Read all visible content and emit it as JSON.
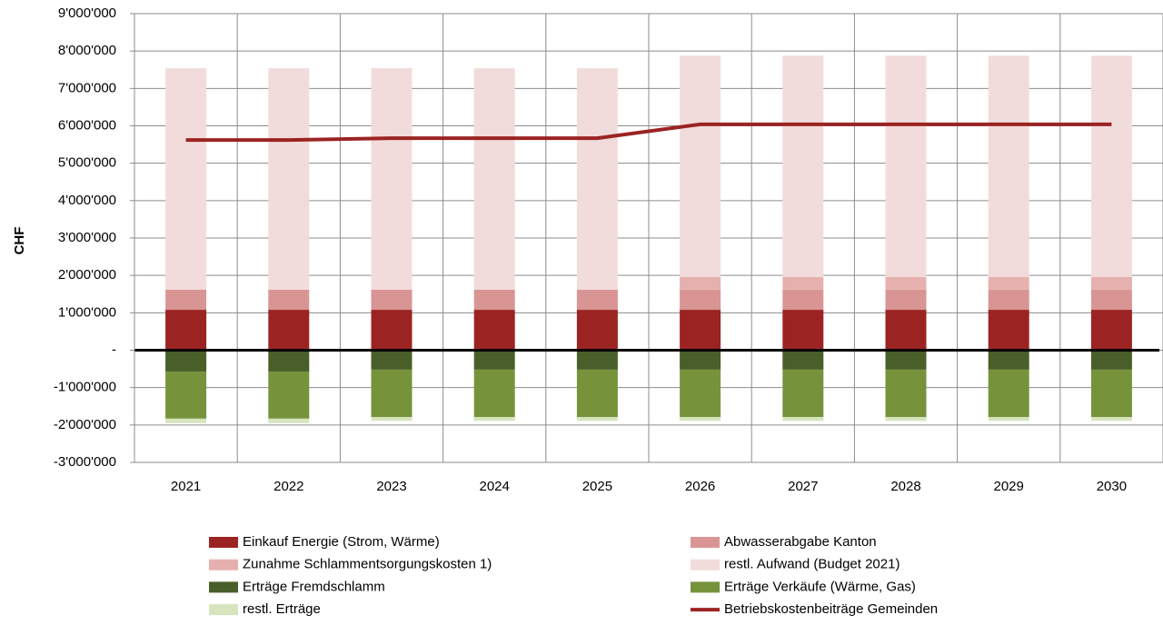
{
  "chart_data": {
    "type": "bar",
    "stacked": true,
    "ylabel": "CHF",
    "categories": [
      "2021",
      "2022",
      "2023",
      "2024",
      "2025",
      "2026",
      "2027",
      "2028",
      "2029",
      "2030"
    ],
    "series": [
      {
        "name": "Einkauf Energie (Strom, Wärme)",
        "color": "#9b2423",
        "values": [
          1080000,
          1080000,
          1080000,
          1080000,
          1080000,
          1080000,
          1080000,
          1080000,
          1080000,
          1080000
        ]
      },
      {
        "name": "Abwasserabgabe Kanton",
        "color": "#d99594",
        "values": [
          540000,
          540000,
          540000,
          540000,
          540000,
          540000,
          540000,
          540000,
          540000,
          540000
        ]
      },
      {
        "name": "Zunahme Schlammentsorgungskosten 1)",
        "color": "#e6b0af",
        "values": [
          0,
          0,
          0,
          0,
          0,
          335000,
          335000,
          335000,
          335000,
          335000
        ]
      },
      {
        "name": "restl. Aufwand (Budget 2021)",
        "color": "#f2dcdb",
        "values": [
          5920000,
          5920000,
          5920000,
          5920000,
          5920000,
          5920000,
          5920000,
          5920000,
          5920000,
          5920000
        ]
      },
      {
        "name": "Erträge Fremdschlamm",
        "color": "#4a5e2a",
        "values": [
          -570000,
          -570000,
          -520000,
          -520000,
          -520000,
          -520000,
          -520000,
          -520000,
          -520000,
          -520000
        ]
      },
      {
        "name": "Erträge Verkäufe (Wärme, Gas)",
        "color": "#76933c",
        "values": [
          -1260000,
          -1260000,
          -1270000,
          -1270000,
          -1270000,
          -1270000,
          -1270000,
          -1270000,
          -1270000,
          -1270000
        ]
      },
      {
        "name": "restl. Erträge",
        "color": "#d7e4bd",
        "values": [
          -120000,
          -120000,
          -100000,
          -100000,
          -100000,
          -100000,
          -100000,
          -100000,
          -100000,
          -100000
        ]
      },
      {
        "name": "Betriebskostenbeiträge Gemeinden",
        "color": "#9b2423",
        "type": "line",
        "values": [
          5620000,
          5620000,
          5670000,
          5670000,
          5670000,
          6040000,
          6040000,
          6040000,
          6040000,
          6040000
        ]
      }
    ],
    "ylim": [
      -3000000,
      9000000
    ],
    "yticks": [
      {
        "value": -3000000,
        "label": "-3'000'000"
      },
      {
        "value": -2000000,
        "label": "-2'000'000"
      },
      {
        "value": -1000000,
        "label": "-1'000'000"
      },
      {
        "value": 0,
        "label": "-"
      },
      {
        "value": 1000000,
        "label": "1'000'000"
      },
      {
        "value": 2000000,
        "label": "2'000'000"
      },
      {
        "value": 3000000,
        "label": "3'000'000"
      },
      {
        "value": 4000000,
        "label": "4'000'000"
      },
      {
        "value": 5000000,
        "label": "5'000'000"
      },
      {
        "value": 6000000,
        "label": "6'000'000"
      },
      {
        "value": 7000000,
        "label": "7'000'000"
      },
      {
        "value": 8000000,
        "label": "8'000'000"
      },
      {
        "value": 9000000,
        "label": "9'000'000"
      }
    ],
    "grid": true
  }
}
